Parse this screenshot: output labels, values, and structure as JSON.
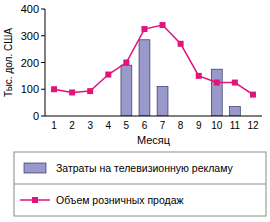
{
  "chart_data": {
    "type": "bar",
    "y_label": "Тыс. дол. США",
    "x_label": "Месяц",
    "categories": [
      "1",
      "2",
      "3",
      "4",
      "5",
      "6",
      "7",
      "8",
      "9",
      "10",
      "11",
      "12"
    ],
    "series": [
      {
        "name": "Затраты на телевизионную рекламу",
        "type": "bar",
        "color": "#9999cc",
        "values": [
          null,
          null,
          null,
          null,
          190,
          285,
          110,
          null,
          null,
          175,
          35,
          null
        ]
      },
      {
        "name": "Объем розничных продаж",
        "type": "line",
        "color": "#e0147a",
        "marker": "square",
        "values": [
          100,
          88,
          93,
          155,
          200,
          325,
          340,
          270,
          150,
          125,
          125,
          80
        ]
      }
    ],
    "ylim": [
      0,
      400
    ],
    "yticks": [
      0,
      100,
      200,
      300,
      400
    ],
    "grid": false,
    "legend": "bottom"
  }
}
